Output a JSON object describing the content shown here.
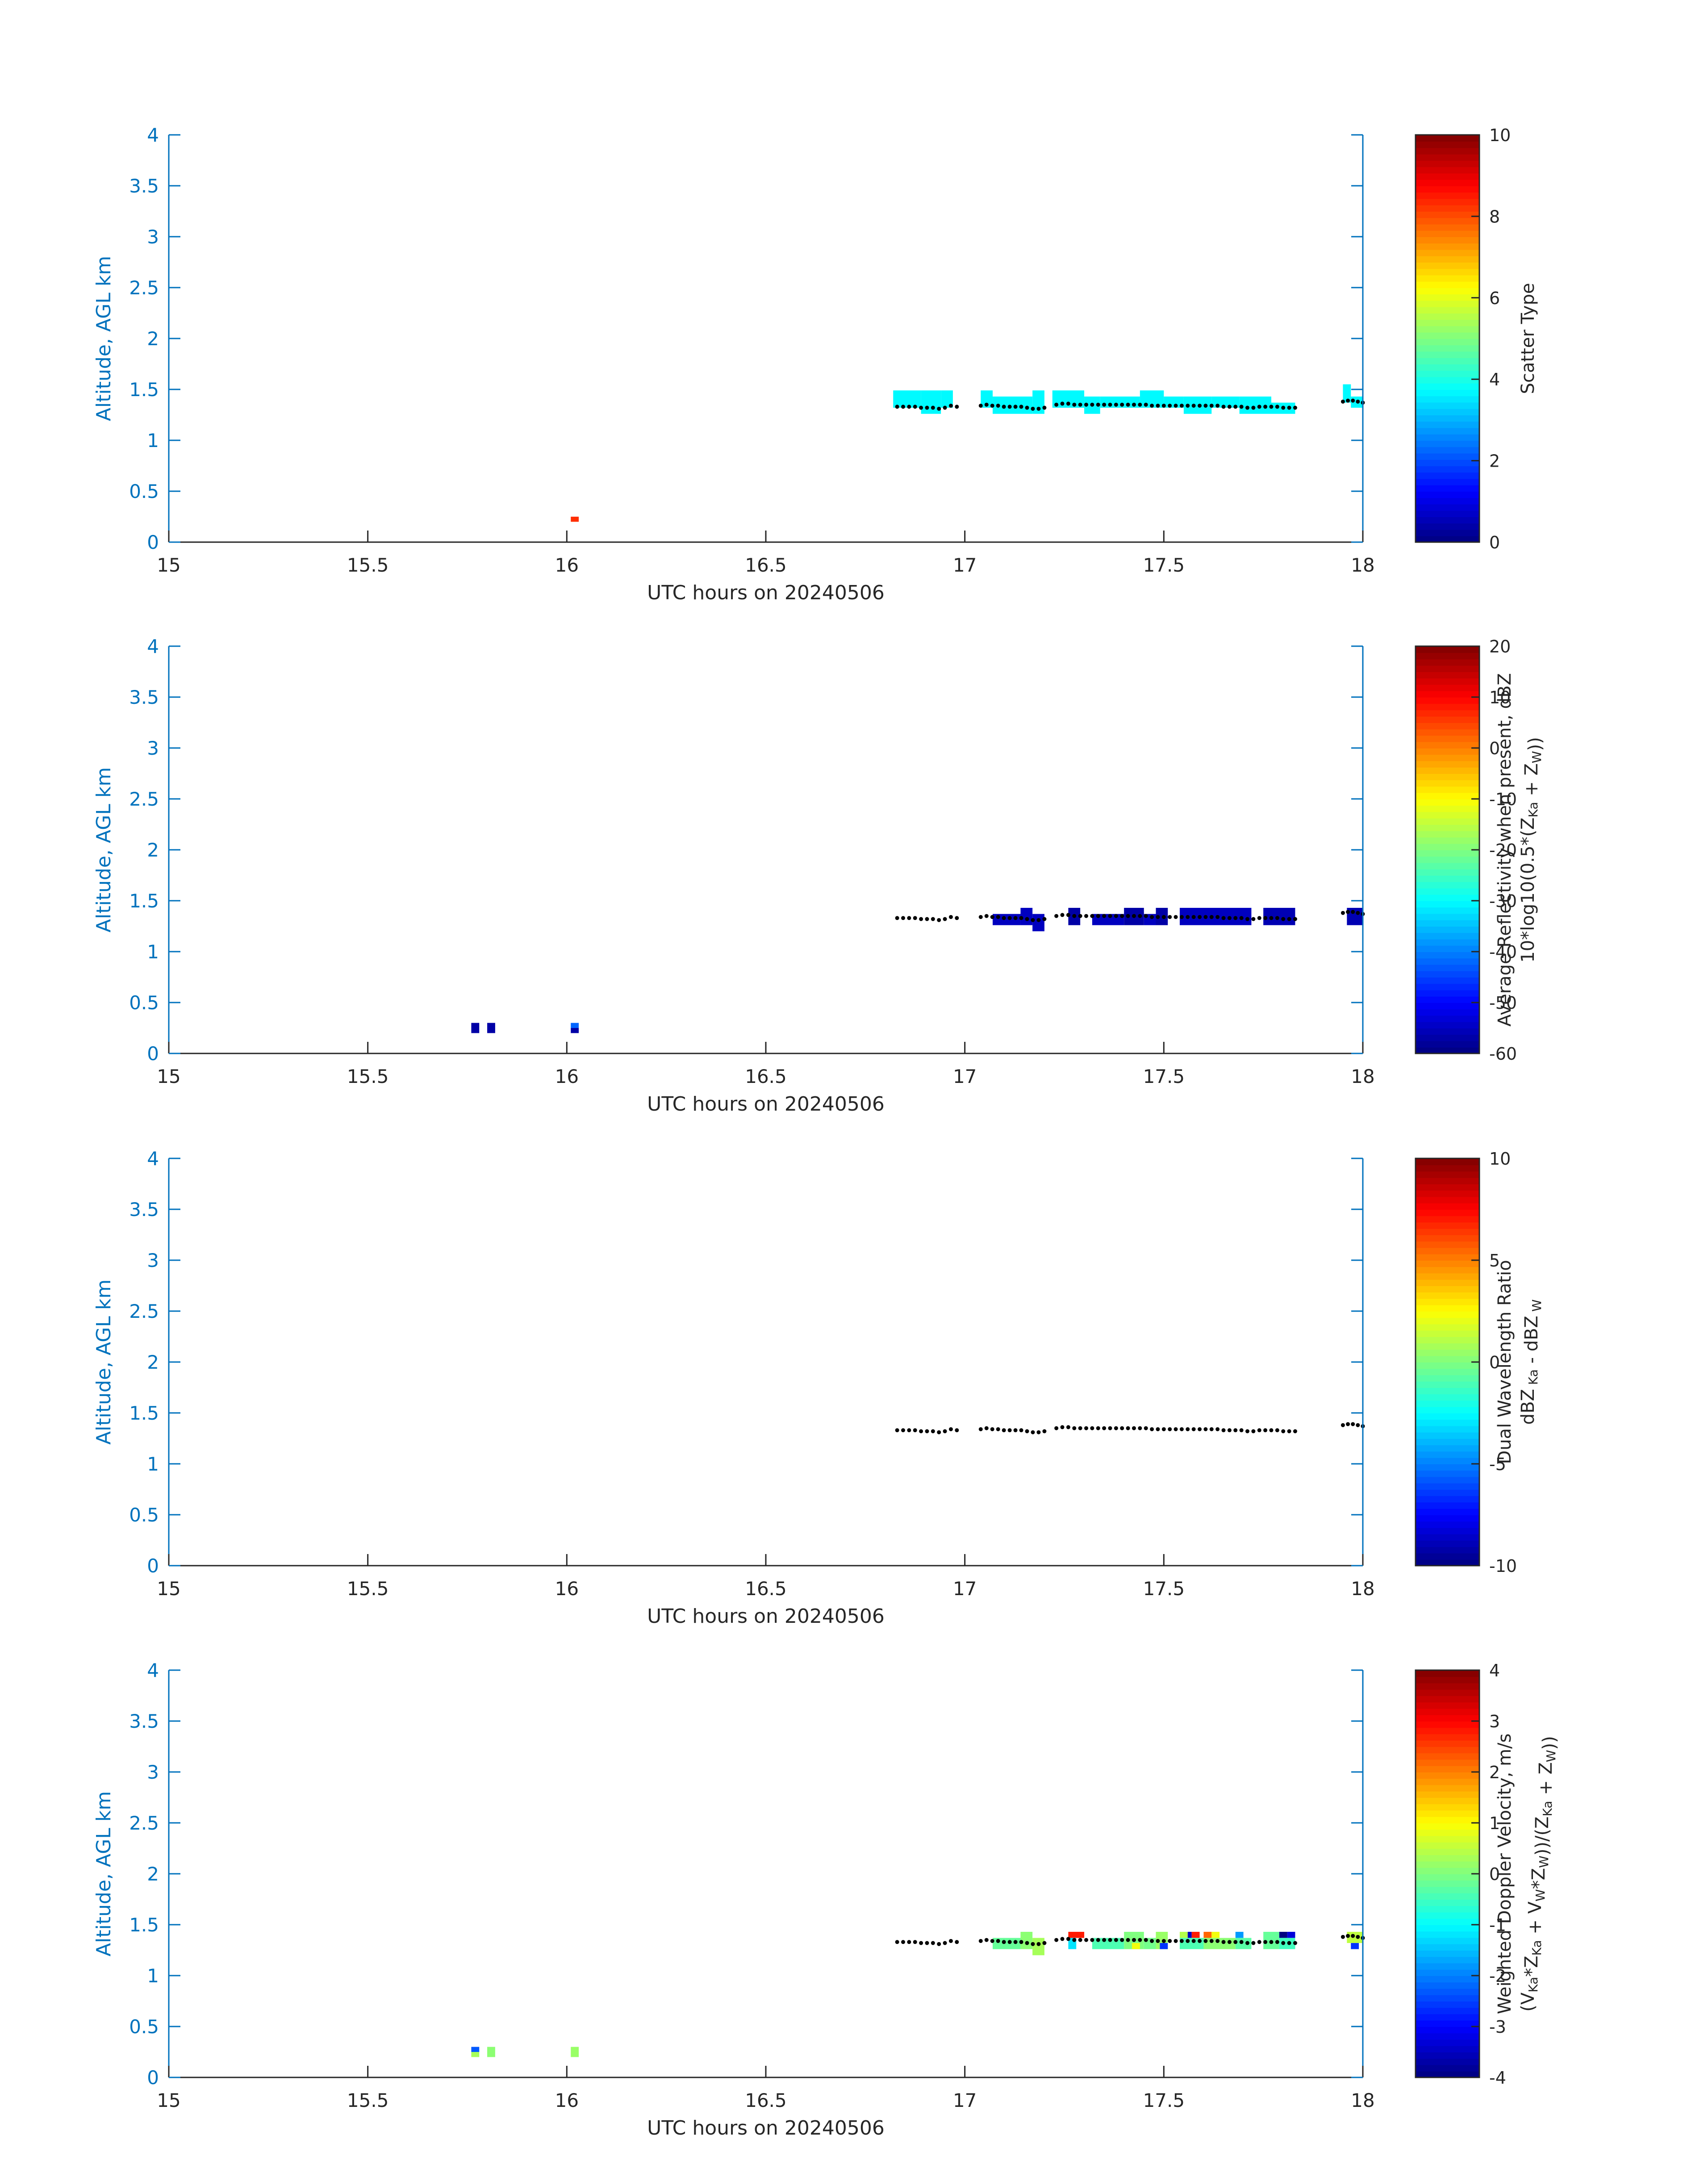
{
  "figure": {
    "x_ticks": [
      15,
      15.5,
      16,
      16.5,
      17,
      17.5,
      18
    ],
    "y_ticks": [
      0,
      0.5,
      1,
      1.5,
      2,
      2.5,
      3,
      3.5,
      4
    ],
    "xlim": [
      15,
      18
    ],
    "ylim": [
      0,
      4
    ],
    "axis_color": "#0072bd",
    "text_color": "#262626"
  },
  "chart_data": [
    {
      "type": "heatmap",
      "xlabel": "UTC hours on 20240506",
      "ylabel": "Altitude, AGL km",
      "colorbar": {
        "label_lines": [
          [
            {
              "t": "Scatter Type"
            }
          ]
        ],
        "ticks": [
          0,
          2,
          4,
          6,
          8,
          10
        ],
        "clim": [
          0,
          10
        ]
      },
      "cloud_base_dots": "shared",
      "cells": [
        {
          "x": 16.01,
          "x2": 16.03,
          "y": 0.2,
          "y2": 0.25,
          "v": 8.3
        },
        {
          "x": 16.82,
          "x2": 16.89,
          "y": 1.32,
          "y2": 1.49,
          "v": 3.7
        },
        {
          "x": 16.89,
          "x2": 16.94,
          "y": 1.26,
          "y2": 1.49,
          "v": 3.7
        },
        {
          "x": 16.94,
          "x2": 16.97,
          "y": 1.32,
          "y2": 1.49,
          "v": 3.7
        },
        {
          "x": 17.04,
          "x2": 17.07,
          "y": 1.32,
          "y2": 1.49,
          "v": 3.7
        },
        {
          "x": 17.07,
          "x2": 17.17,
          "y": 1.26,
          "y2": 1.43,
          "v": 3.7
        },
        {
          "x": 17.17,
          "x2": 17.2,
          "y": 1.26,
          "y2": 1.49,
          "v": 3.7
        },
        {
          "x": 17.22,
          "x2": 17.3,
          "y": 1.32,
          "y2": 1.49,
          "v": 3.7
        },
        {
          "x": 17.3,
          "x2": 17.34,
          "y": 1.26,
          "y2": 1.43,
          "v": 3.7
        },
        {
          "x": 17.34,
          "x2": 17.44,
          "y": 1.32,
          "y2": 1.43,
          "v": 3.7
        },
        {
          "x": 17.44,
          "x2": 17.5,
          "y": 1.32,
          "y2": 1.49,
          "v": 3.7
        },
        {
          "x": 17.5,
          "x2": 17.55,
          "y": 1.32,
          "y2": 1.43,
          "v": 3.7
        },
        {
          "x": 17.55,
          "x2": 17.62,
          "y": 1.26,
          "y2": 1.43,
          "v": 3.7
        },
        {
          "x": 17.62,
          "x2": 17.69,
          "y": 1.32,
          "y2": 1.43,
          "v": 3.7
        },
        {
          "x": 17.69,
          "x2": 17.77,
          "y": 1.26,
          "y2": 1.43,
          "v": 3.7
        },
        {
          "x": 17.77,
          "x2": 17.83,
          "y": 1.26,
          "y2": 1.37,
          "v": 3.7
        },
        {
          "x": 17.95,
          "x2": 17.97,
          "y": 1.37,
          "y2": 1.55,
          "v": 3.7
        },
        {
          "x": 17.97,
          "x2": 18.0,
          "y": 1.32,
          "y2": 1.43,
          "v": 3.7
        }
      ]
    },
    {
      "type": "heatmap",
      "xlabel": "UTC hours on 20240506",
      "ylabel": "Altitude, AGL km",
      "colorbar": {
        "label_lines": [
          [
            {
              "t": "Average Reflectivity when present, dBZ"
            }
          ],
          [
            {
              "t": "10*log10(0.5*(Z"
            },
            {
              "t": "Ka",
              "sub": true
            },
            {
              "t": " + Z"
            },
            {
              "t": "W",
              "sub": true
            },
            {
              "t": "))"
            }
          ]
        ],
        "ticks": [
          -60,
          -50,
          -40,
          -30,
          -20,
          -10,
          0,
          10,
          20
        ],
        "clim": [
          -60,
          20
        ]
      },
      "cloud_base_dots": "shared",
      "cells": [
        {
          "x": 15.76,
          "x2": 15.78,
          "y": 0.2,
          "y2": 0.3,
          "v": -57
        },
        {
          "x": 15.8,
          "x2": 15.82,
          "y": 0.2,
          "y2": 0.3,
          "v": -57
        },
        {
          "x": 16.01,
          "x2": 16.03,
          "y": 0.25,
          "y2": 0.3,
          "v": -42
        },
        {
          "x": 16.01,
          "x2": 16.03,
          "y": 0.2,
          "y2": 0.25,
          "v": -57
        },
        {
          "x": 17.07,
          "x2": 17.14,
          "y": 1.26,
          "y2": 1.37,
          "v": -55
        },
        {
          "x": 17.14,
          "x2": 17.17,
          "y": 1.26,
          "y2": 1.43,
          "v": -55
        },
        {
          "x": 17.17,
          "x2": 17.2,
          "y": 1.2,
          "y2": 1.37,
          "v": -55
        },
        {
          "x": 17.26,
          "x2": 17.29,
          "y": 1.26,
          "y2": 1.43,
          "v": -57
        },
        {
          "x": 17.32,
          "x2": 17.4,
          "y": 1.26,
          "y2": 1.37,
          "v": -55
        },
        {
          "x": 17.4,
          "x2": 17.45,
          "y": 1.26,
          "y2": 1.43,
          "v": -57
        },
        {
          "x": 17.45,
          "x2": 17.48,
          "y": 1.26,
          "y2": 1.37,
          "v": -55
        },
        {
          "x": 17.48,
          "x2": 17.51,
          "y": 1.26,
          "y2": 1.43,
          "v": -57
        },
        {
          "x": 17.54,
          "x2": 17.72,
          "y": 1.26,
          "y2": 1.43,
          "v": -55
        },
        {
          "x": 17.75,
          "x2": 17.83,
          "y": 1.26,
          "y2": 1.43,
          "v": -56
        },
        {
          "x": 17.96,
          "x2": 18.0,
          "y": 1.26,
          "y2": 1.43,
          "v": -56
        }
      ]
    },
    {
      "type": "heatmap",
      "xlabel": "UTC hours on 20240506",
      "ylabel": "Altitude, AGL km",
      "colorbar": {
        "label_lines": [
          [
            {
              "t": "Dual Wavelength Ratio"
            }
          ],
          [
            {
              "t": "dBZ"
            },
            {
              "t": " Ka",
              "sub": true
            },
            {
              "t": " - dBZ"
            },
            {
              "t": " W",
              "sub": true
            }
          ]
        ],
        "ticks": [
          -10,
          -5,
          0,
          5,
          10
        ],
        "clim": [
          -10,
          10
        ]
      },
      "cloud_base_dots": "shared",
      "cells": []
    },
    {
      "type": "heatmap",
      "xlabel": "UTC hours on 20240506",
      "ylabel": "Altitude, AGL km",
      "colorbar": {
        "label_lines": [
          [
            {
              "t": "Weighted Doppler Velocity, m/s"
            }
          ],
          [
            {
              "t": "(V"
            },
            {
              "t": "Ka",
              "sub": true
            },
            {
              "t": "*Z"
            },
            {
              "t": "Ka",
              "sub": true
            },
            {
              "t": " + V"
            },
            {
              "t": "W",
              "sub": true
            },
            {
              "t": "*Z"
            },
            {
              "t": "W",
              "sub": true
            },
            {
              "t": "))/(Z"
            },
            {
              "t": "Ka",
              "sub": true
            },
            {
              "t": " + Z"
            },
            {
              "t": "W",
              "sub": true
            },
            {
              "t": "))"
            }
          ]
        ],
        "ticks": [
          -4,
          -3,
          -2,
          -1,
          0,
          1,
          2,
          3,
          4
        ],
        "clim": [
          -4,
          4
        ]
      },
      "cloud_base_dots": "shared",
      "cells": [
        {
          "x": 15.76,
          "x2": 15.78,
          "y": 0.25,
          "y2": 0.3,
          "v": -2.3
        },
        {
          "x": 15.76,
          "x2": 15.78,
          "y": 0.2,
          "y2": 0.25,
          "v": 0.3
        },
        {
          "x": 15.8,
          "x2": 15.82,
          "y": 0.2,
          "y2": 0.3,
          "v": 0.1
        },
        {
          "x": 16.01,
          "x2": 16.03,
          "y": 0.2,
          "y2": 0.3,
          "v": 0.2
        },
        {
          "x": 17.07,
          "x2": 17.14,
          "y": 1.26,
          "y2": 1.37,
          "v": -0.2
        },
        {
          "x": 17.14,
          "x2": 17.17,
          "y": 1.26,
          "y2": 1.43,
          "v": 0.1
        },
        {
          "x": 17.17,
          "x2": 17.2,
          "y": 1.2,
          "y2": 1.37,
          "v": 0.3
        },
        {
          "x": 17.26,
          "x2": 17.3,
          "y": 1.37,
          "y2": 1.43,
          "v": 2.8
        },
        {
          "x": 17.26,
          "x2": 17.28,
          "y": 1.26,
          "y2": 1.37,
          "v": -1.2
        },
        {
          "x": 17.32,
          "x2": 17.4,
          "y": 1.26,
          "y2": 1.37,
          "v": -0.4
        },
        {
          "x": 17.4,
          "x2": 17.45,
          "y": 1.26,
          "y2": 1.43,
          "v": 0.0
        },
        {
          "x": 17.42,
          "x2": 17.44,
          "y": 1.26,
          "y2": 1.32,
          "v": 0.9
        },
        {
          "x": 17.45,
          "x2": 17.48,
          "y": 1.26,
          "y2": 1.37,
          "v": -0.1
        },
        {
          "x": 17.48,
          "x2": 17.51,
          "y": 1.26,
          "y2": 1.43,
          "v": 0.2
        },
        {
          "x": 17.49,
          "x2": 17.51,
          "y": 1.26,
          "y2": 1.32,
          "v": -2.6
        },
        {
          "x": 17.54,
          "x2": 17.56,
          "y": 1.37,
          "y2": 1.43,
          "v": 0.4
        },
        {
          "x": 17.56,
          "x2": 17.57,
          "y": 1.37,
          "y2": 1.43,
          "v": -3.5
        },
        {
          "x": 17.57,
          "x2": 17.59,
          "y": 1.37,
          "y2": 1.43,
          "v": 2.8
        },
        {
          "x": 17.54,
          "x2": 17.6,
          "y": 1.26,
          "y2": 1.37,
          "v": -0.4
        },
        {
          "x": 17.6,
          "x2": 17.62,
          "y": 1.37,
          "y2": 1.43,
          "v": 2.2
        },
        {
          "x": 17.62,
          "x2": 17.64,
          "y": 1.37,
          "y2": 1.43,
          "v": 0.9
        },
        {
          "x": 17.6,
          "x2": 17.68,
          "y": 1.26,
          "y2": 1.37,
          "v": 0.1
        },
        {
          "x": 17.68,
          "x2": 17.7,
          "y": 1.37,
          "y2": 1.43,
          "v": -1.8
        },
        {
          "x": 17.68,
          "x2": 17.72,
          "y": 1.26,
          "y2": 1.37,
          "v": -0.3
        },
        {
          "x": 17.75,
          "x2": 17.79,
          "y": 1.26,
          "y2": 1.43,
          "v": -0.2
        },
        {
          "x": 17.79,
          "x2": 17.81,
          "y": 1.37,
          "y2": 1.43,
          "v": -4.0
        },
        {
          "x": 17.81,
          "x2": 17.83,
          "y": 1.37,
          "y2": 1.43,
          "v": -3.3
        },
        {
          "x": 17.79,
          "x2": 17.83,
          "y": 1.26,
          "y2": 1.37,
          "v": -0.5
        },
        {
          "x": 17.96,
          "x2": 18.0,
          "y": 1.32,
          "y2": 1.43,
          "v": 0.5
        },
        {
          "x": 17.97,
          "x2": 17.99,
          "y": 1.26,
          "y2": 1.32,
          "v": -2.6
        }
      ]
    }
  ],
  "cloud_base_dots": {
    "marker_color": "#000000",
    "segments": [
      {
        "x_start": 16.83,
        "x_end": 16.98,
        "y": [
          1.33,
          1.33,
          1.33,
          1.33,
          1.32,
          1.32,
          1.32,
          1.31,
          1.32,
          1.34,
          1.33
        ]
      },
      {
        "x_start": 17.04,
        "x_end": 17.2,
        "y": [
          1.34,
          1.35,
          1.34,
          1.34,
          1.33,
          1.33,
          1.33,
          1.33,
          1.32,
          1.31,
          1.31,
          1.32
        ]
      },
      {
        "x_start": 17.23,
        "x_end": 17.83,
        "y": [
          1.35,
          1.36,
          1.36,
          1.35,
          1.35,
          1.35,
          1.35,
          1.35,
          1.35,
          1.35,
          1.35,
          1.35,
          1.35,
          1.35,
          1.35,
          1.35,
          1.34,
          1.34,
          1.34,
          1.34,
          1.34,
          1.34,
          1.34,
          1.34,
          1.34,
          1.34,
          1.34,
          1.34,
          1.33,
          1.33,
          1.33,
          1.33,
          1.32,
          1.32,
          1.33,
          1.33,
          1.33,
          1.33,
          1.32,
          1.32,
          1.32
        ]
      },
      {
        "x_start": 17.95,
        "x_end": 18.0,
        "y": [
          1.38,
          1.39,
          1.39,
          1.38,
          1.37
        ]
      }
    ]
  }
}
